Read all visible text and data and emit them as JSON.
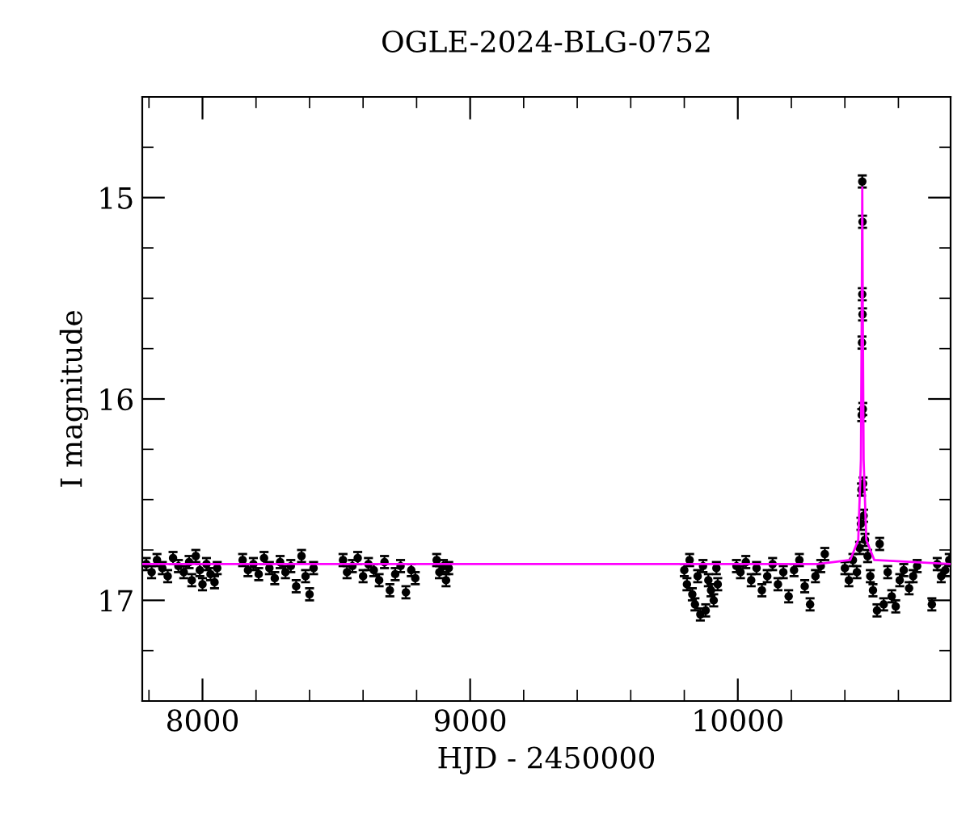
{
  "chart_data": {
    "type": "scatter",
    "title": "OGLE-2024-BLG-0752",
    "xlabel": "HJD - 2450000",
    "ylabel": "I magnitude",
    "xlim": [
      7775,
      10795
    ],
    "ylim": [
      17.5,
      14.5
    ],
    "xticks": [
      {
        "value": 7800,
        "label": null
      },
      8000,
      {
        "value": 8200,
        "label": null
      },
      {
        "value": 8400,
        "label": null
      },
      {
        "value": 8600,
        "label": null
      },
      {
        "value": 8800,
        "label": null
      },
      9000,
      {
        "value": 9200,
        "label": null
      },
      {
        "value": 9400,
        "label": null
      },
      {
        "value": 9600,
        "label": null
      },
      {
        "value": 9800,
        "label": null
      },
      10000,
      {
        "value": 10200,
        "label": null
      },
      {
        "value": 10400,
        "label": null
      },
      {
        "value": 10600,
        "label": null
      }
    ],
    "yticks": [
      {
        "value": 14.75,
        "label": null
      },
      15,
      {
        "value": 15.25,
        "label": null
      },
      {
        "value": 15.5,
        "label": null
      },
      {
        "value": 15.75,
        "label": null
      },
      16,
      {
        "value": 16.25,
        "label": null
      },
      {
        "value": 16.5,
        "label": null
      },
      {
        "value": 16.75,
        "label": null
      },
      17,
      {
        "value": 17.25,
        "label": null
      }
    ],
    "marker": "circle",
    "series": [
      {
        "color": "#000000",
        "x": [
          7790,
          7810,
          7830,
          7850,
          7870,
          7890,
          7910,
          7930,
          7950,
          7960,
          7975,
          7990,
          8000,
          8015,
          8030,
          8045,
          8055,
          8150,
          8170,
          8190,
          8210,
          8230,
          8250,
          8270,
          8290,
          8310,
          8330,
          8350,
          8370,
          8385,
          8400,
          8415,
          8525,
          8540,
          8560,
          8580,
          8600,
          8620,
          8640,
          8660,
          8680,
          8700,
          8720,
          8740,
          8760,
          8780,
          8795,
          8875,
          8885,
          8900,
          8910,
          8920,
          9800,
          9810,
          9820,
          9830,
          9840,
          9850,
          9860,
          9870,
          9880,
          9890,
          9900,
          9910,
          9920,
          9925,
          9995,
          10010,
          10030,
          10050,
          10070,
          10090,
          10110,
          10130,
          10150,
          10170,
          10190,
          10210,
          10230,
          10250,
          10270,
          10290,
          10310,
          10325,
          10400,
          10415,
          10430,
          10445,
          10455,
          10460,
          10462,
          10463,
          10464,
          10465,
          10465,
          10466,
          10466,
          10467,
          10468,
          10470,
          10475,
          10485,
          10495,
          10505,
          10520,
          10530,
          10545,
          10560,
          10575,
          10590,
          10605,
          10620,
          10640,
          10655,
          10670,
          10725,
          10745,
          10760,
          10775,
          10790
        ],
        "values": [
          16.82,
          16.86,
          16.8,
          16.84,
          16.88,
          16.79,
          16.83,
          16.86,
          16.81,
          16.9,
          16.78,
          16.85,
          16.92,
          16.82,
          16.87,
          16.91,
          16.84,
          16.8,
          16.85,
          16.82,
          16.87,
          16.79,
          16.84,
          16.89,
          16.81,
          16.86,
          16.83,
          16.93,
          16.78,
          16.88,
          16.97,
          16.84,
          16.8,
          16.86,
          16.83,
          16.79,
          16.88,
          16.82,
          16.85,
          16.9,
          16.81,
          16.95,
          16.87,
          16.83,
          16.96,
          16.85,
          16.89,
          16.8,
          16.86,
          16.83,
          16.9,
          16.84,
          16.85,
          16.92,
          16.8,
          16.97,
          17.02,
          16.88,
          17.07,
          16.83,
          17.05,
          16.9,
          16.95,
          17.0,
          16.84,
          16.92,
          16.83,
          16.86,
          16.81,
          16.9,
          16.84,
          16.95,
          16.88,
          16.82,
          16.92,
          16.86,
          16.98,
          16.85,
          16.8,
          16.93,
          17.02,
          16.88,
          16.83,
          16.77,
          16.84,
          16.9,
          16.8,
          16.86,
          16.74,
          16.62,
          16.45,
          16.08,
          15.72,
          15.48,
          14.92,
          15.12,
          15.58,
          16.05,
          16.42,
          16.58,
          16.7,
          16.78,
          16.88,
          16.95,
          17.05,
          16.72,
          17.02,
          16.86,
          16.98,
          17.03,
          16.9,
          16.85,
          16.94,
          16.88,
          16.83,
          17.02,
          16.82,
          16.88,
          16.85,
          16.8
        ],
        "errors": [
          0.03,
          0.03,
          0.03,
          0.03,
          0.03,
          0.03,
          0.03,
          0.03,
          0.03,
          0.03,
          0.03,
          0.03,
          0.03,
          0.03,
          0.03,
          0.03,
          0.03,
          0.03,
          0.03,
          0.03,
          0.03,
          0.03,
          0.03,
          0.03,
          0.03,
          0.03,
          0.03,
          0.03,
          0.03,
          0.03,
          0.03,
          0.03,
          0.03,
          0.03,
          0.03,
          0.03,
          0.03,
          0.03,
          0.03,
          0.03,
          0.03,
          0.03,
          0.03,
          0.03,
          0.03,
          0.03,
          0.03,
          0.03,
          0.03,
          0.03,
          0.03,
          0.03,
          0.03,
          0.03,
          0.03,
          0.03,
          0.03,
          0.03,
          0.03,
          0.03,
          0.03,
          0.03,
          0.03,
          0.03,
          0.03,
          0.03,
          0.03,
          0.03,
          0.03,
          0.03,
          0.03,
          0.03,
          0.03,
          0.03,
          0.03,
          0.03,
          0.03,
          0.03,
          0.03,
          0.03,
          0.03,
          0.03,
          0.03,
          0.03,
          0.03,
          0.03,
          0.03,
          0.03,
          0.03,
          0.03,
          0.03,
          0.03,
          0.03,
          0.03,
          0.03,
          0.03,
          0.03,
          0.03,
          0.03,
          0.03,
          0.03,
          0.03,
          0.03,
          0.03,
          0.03,
          0.03,
          0.03,
          0.03,
          0.03,
          0.03,
          0.03,
          0.03,
          0.03,
          0.03,
          0.03,
          0.03,
          0.03,
          0.03,
          0.03,
          0.03
        ]
      },
      {
        "type": "line",
        "color": "#ff00ff",
        "marker": "none",
        "x": [
          7775,
          10300,
          10420,
          10450,
          10460,
          10463,
          10465,
          10467,
          10470,
          10480,
          10510,
          10795
        ],
        "values": [
          16.82,
          16.82,
          16.8,
          16.7,
          16.3,
          15.6,
          14.95,
          15.6,
          16.3,
          16.7,
          16.8,
          16.82
        ]
      }
    ]
  }
}
